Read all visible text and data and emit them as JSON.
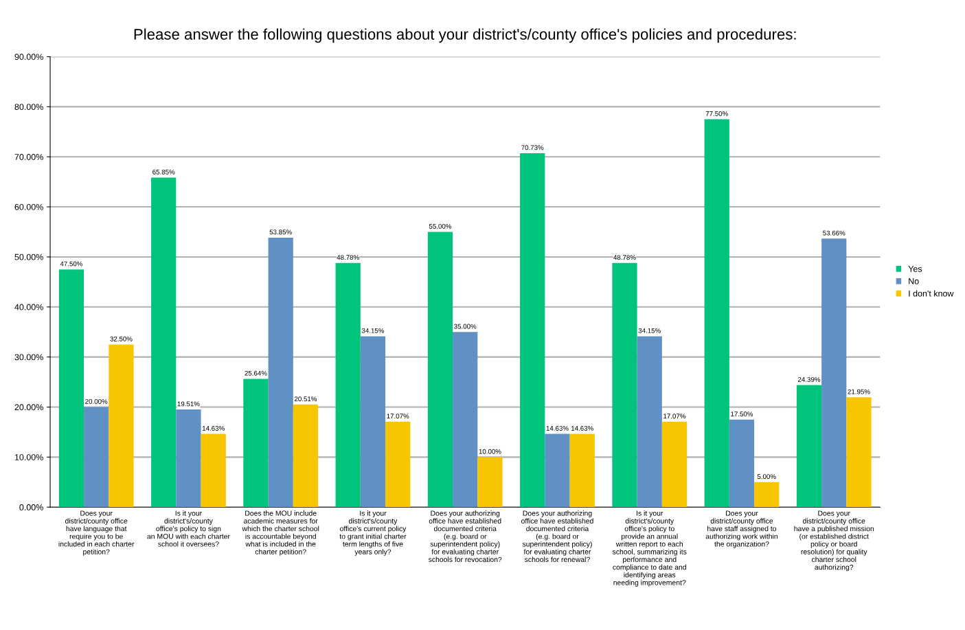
{
  "chart_data": {
    "type": "bar",
    "title": "Please answer the following questions about your district's/county office's policies and procedures:",
    "categories": [
      "Does your district/county office have language that require you to be included in each charter petition?",
      "Is it your district's/county office's policy to sign an MOU with each charter school it oversees?",
      "Does the MOU include academic measures for which the charter school is accountable beyond what is included in the charter petition?",
      "Is it your district's/county office's current policy to grant initial charter term lengths of five years only?",
      "Does your authorizing office have established documented criteria (e.g. board or superintendent policy) for evaluating charter schools for revocation?",
      "Does your authorizing office have established documented criteria (e.g. board or superintendent policy) for evaluating charter schools for renewal?",
      "Is it your district's/county office's policy to provide an annual written report to each school, summarizing its performance and compliance to date and identifying areas needing improvement?",
      "Does your district/county office have staff assigned to authorizing work within the organization?",
      "Does your district/county office have a published mission (or established district policy or board resolution) for quality charter school authorizing?"
    ],
    "series": [
      {
        "name": "Yes",
        "color": "#00c47c",
        "values": [
          47.5,
          65.85,
          25.64,
          48.78,
          55.0,
          70.73,
          48.78,
          77.5,
          24.39
        ],
        "value_labels": [
          "47.50%",
          "65.85%",
          "25.64%",
          "48.78%",
          "55.00%",
          "70.73%",
          "48.78%",
          "77.50%",
          "24.39%"
        ]
      },
      {
        "name": "No",
        "color": "#6090c4",
        "values": [
          20.0,
          19.51,
          53.85,
          34.15,
          35.0,
          14.63,
          34.15,
          17.5,
          53.66
        ],
        "value_labels": [
          "20.00%",
          "19.51%",
          "53.85%",
          "34.15%",
          "35.00%",
          "14.63%",
          "34.15%",
          "17.50%",
          "53.66%"
        ]
      },
      {
        "name": "I don't know",
        "color": "#f7c600",
        "values": [
          32.5,
          14.63,
          20.51,
          17.07,
          10.0,
          14.63,
          17.07,
          5.0,
          21.95
        ],
        "value_labels": [
          "32.50%",
          "14.63%",
          "20.51%",
          "17.07%",
          "10.00%",
          "14.63%",
          "17.07%",
          "5.00%",
          "21.95%"
        ]
      }
    ],
    "ylim": [
      0,
      90
    ],
    "yticks": [
      {
        "value": 0,
        "label": "0.00%"
      },
      {
        "value": 10,
        "label": "10.00%"
      },
      {
        "value": 20,
        "label": "20.00%"
      },
      {
        "value": 30,
        "label": "30.00%"
      },
      {
        "value": 40,
        "label": "40.00%"
      },
      {
        "value": 50,
        "label": "50.00%"
      },
      {
        "value": 60,
        "label": "60.00%"
      },
      {
        "value": 70,
        "label": "70.00%"
      },
      {
        "value": 80,
        "label": "80.00%"
      },
      {
        "value": 90,
        "label": "90.00%"
      }
    ],
    "grid": "y",
    "legend": "right"
  }
}
